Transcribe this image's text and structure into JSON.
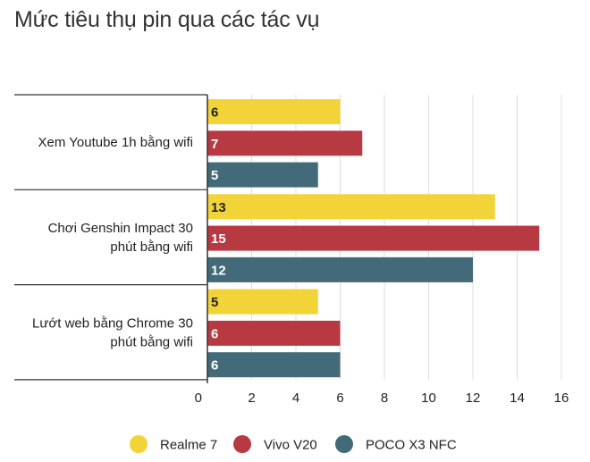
{
  "chart_data": {
    "type": "bar",
    "orientation": "horizontal",
    "title": "Mức tiêu thụ pin qua các tác vụ",
    "categories": [
      [
        "Xem Youtube 1h bằng wifi"
      ],
      [
        "Chơi Genshin Impact 30",
        "phút bằng wifi"
      ],
      [
        "Lướt web bằng Chrome 30",
        "phút bằng wifi"
      ]
    ],
    "series": [
      {
        "name": "Realme 7",
        "color": "#f2d338",
        "label_color": "#222222",
        "values": [
          6,
          13,
          5
        ]
      },
      {
        "name": "Vivo V20",
        "color": "#b73a42",
        "label_color": "#ffffff",
        "values": [
          7,
          15,
          6
        ]
      },
      {
        "name": "POCO X3 NFC",
        "color": "#426a79",
        "label_color": "#ffffff",
        "values": [
          5,
          12,
          6
        ]
      }
    ],
    "xlim": [
      0,
      16
    ],
    "xticks": [
      0,
      2,
      4,
      6,
      8,
      10,
      12,
      14,
      16
    ],
    "grid": true,
    "legend_position": "bottom"
  }
}
